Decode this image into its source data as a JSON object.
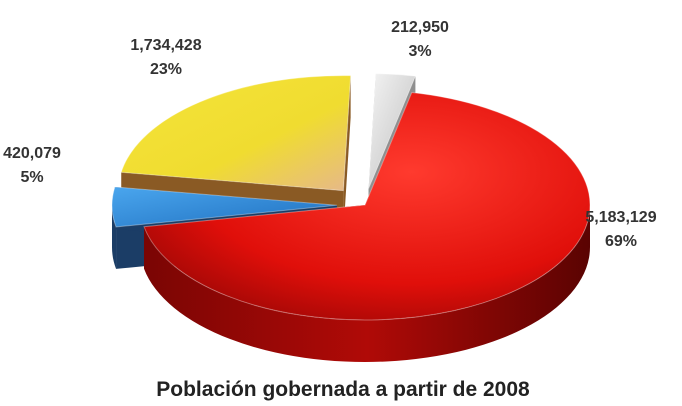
{
  "chart_data": {
    "type": "pie",
    "title": "Población gobernada a partir de 2008",
    "slices": [
      {
        "value_label": "5,183,129",
        "percent_label": "69%",
        "value": 5183129,
        "percent": 69,
        "color": "#e8120c"
      },
      {
        "value_label": "420,079",
        "percent_label": "5%",
        "value": 420079,
        "percent": 5,
        "color": "#2f86d6"
      },
      {
        "value_label": "1,734,428",
        "percent_label": "23%",
        "value": 1734428,
        "percent": 23,
        "color": "#f2e230"
      },
      {
        "value_label": "212,950",
        "percent_label": "3%",
        "value": 212950,
        "percent": 3,
        "color": "#cfcfcf"
      }
    ]
  }
}
